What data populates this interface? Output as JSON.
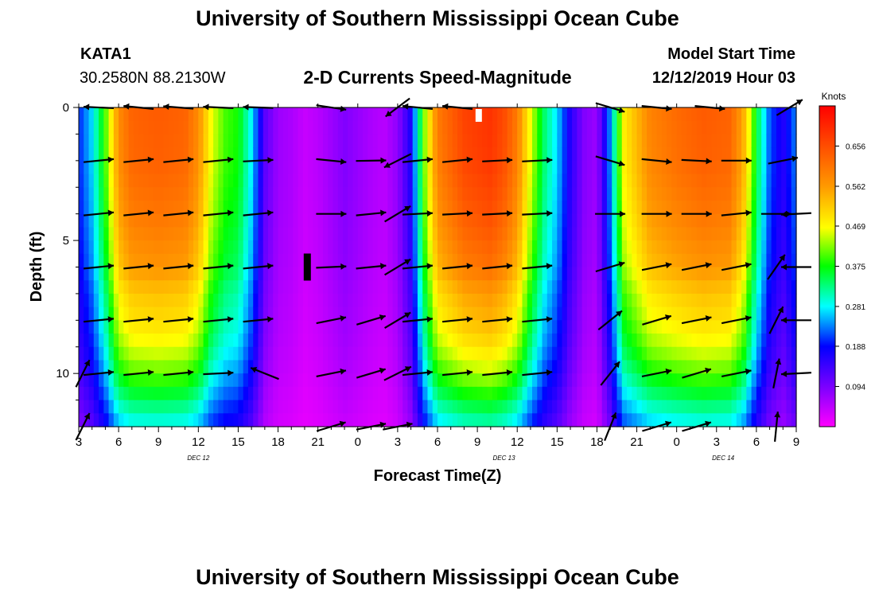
{
  "page": {
    "title_top": "University of Southern Mississippi Ocean Cube",
    "title_bottom": "University of Southern Mississippi Ocean Cube",
    "station_id": "KATA1",
    "coords": "30.2580N 88.2130W",
    "chart_title": "2-D Currents Speed-Magnitude",
    "model_start_label": "Model Start Time",
    "model_start_value": "12/12/2019 Hour 03"
  },
  "chart_data": {
    "type": "heatmap",
    "title": "2-D Currents Speed-Magnitude",
    "xlabel": "Forecast Time(Z)",
    "ylabel": "Depth (ft)",
    "xlim": [
      3,
      57
    ],
    "ylim": [
      0,
      12
    ],
    "x_ticks": [
      {
        "t": 3,
        "label": "3"
      },
      {
        "t": 6,
        "label": "6"
      },
      {
        "t": 9,
        "label": "9"
      },
      {
        "t": 12,
        "label": "12"
      },
      {
        "t": 15,
        "label": "15"
      },
      {
        "t": 18,
        "label": "18"
      },
      {
        "t": 21,
        "label": "21"
      },
      {
        "t": 24,
        "label": "0"
      },
      {
        "t": 27,
        "label": "3"
      },
      {
        "t": 30,
        "label": "6"
      },
      {
        "t": 33,
        "label": "9"
      },
      {
        "t": 36,
        "label": "12"
      },
      {
        "t": 39,
        "label": "15"
      },
      {
        "t": 42,
        "label": "18"
      },
      {
        "t": 45,
        "label": "21"
      },
      {
        "t": 48,
        "label": "0"
      },
      {
        "t": 51,
        "label": "3"
      },
      {
        "t": 54,
        "label": "6"
      },
      {
        "t": 57,
        "label": "9"
      }
    ],
    "date_labels": [
      {
        "t": 12,
        "label": "DEC 12"
      },
      {
        "t": 35,
        "label": "DEC 13"
      },
      {
        "t": 51.5,
        "label": "DEC 14"
      }
    ],
    "y_ticks": [
      {
        "d": 0,
        "label": "0"
      },
      {
        "d": 5,
        "label": "5"
      },
      {
        "d": 10,
        "label": "10"
      }
    ],
    "colorbar": {
      "unit_label": "Knots",
      "min": 0.0,
      "max": 0.75,
      "ticks": [
        "0.094",
        "0.188",
        "0.281",
        "0.375",
        "0.469",
        "0.562",
        "0.656"
      ]
    },
    "speed_model": {
      "units": "knots",
      "description": "speed by forecast hour (t) and depth (d)",
      "surface_profile": [
        [
          3,
          0.2
        ],
        [
          4,
          0.27
        ],
        [
          5,
          0.4
        ],
        [
          6,
          0.58
        ],
        [
          7,
          0.63
        ],
        [
          9,
          0.64
        ],
        [
          11,
          0.63
        ],
        [
          12,
          0.58
        ],
        [
          13,
          0.46
        ],
        [
          14,
          0.4
        ],
        [
          15,
          0.38
        ],
        [
          16,
          0.28
        ],
        [
          17,
          0.12
        ],
        [
          18,
          0.07
        ],
        [
          19,
          0.06
        ],
        [
          20,
          0.04
        ],
        [
          21,
          0.05
        ],
        [
          23,
          0.09
        ],
        [
          25,
          0.06
        ],
        [
          26,
          0.05
        ],
        [
          27,
          0.08
        ],
        [
          28,
          0.17
        ],
        [
          29,
          0.42
        ],
        [
          30,
          0.6
        ],
        [
          32,
          0.67
        ],
        [
          34,
          0.69
        ],
        [
          35,
          0.66
        ],
        [
          36,
          0.6
        ],
        [
          37,
          0.46
        ],
        [
          38,
          0.34
        ],
        [
          39,
          0.27
        ],
        [
          40,
          0.16
        ],
        [
          41,
          0.09
        ],
        [
          42,
          0.07
        ],
        [
          43,
          0.24
        ],
        [
          44,
          0.48
        ],
        [
          46,
          0.59
        ],
        [
          48,
          0.62
        ],
        [
          50,
          0.64
        ],
        [
          52,
          0.63
        ],
        [
          53,
          0.55
        ],
        [
          54,
          0.36
        ],
        [
          55,
          0.22
        ],
        [
          56,
          0.16
        ],
        [
          57,
          0.24
        ]
      ],
      "depth_factor": [
        [
          0,
          1.0
        ],
        [
          2,
          0.99
        ],
        [
          4,
          0.95
        ],
        [
          6,
          0.89
        ],
        [
          7,
          0.82
        ],
        [
          8,
          0.78
        ],
        [
          9,
          0.72
        ],
        [
          10,
          0.64
        ],
        [
          11,
          0.54
        ],
        [
          12,
          0.44
        ]
      ]
    },
    "vectors": {
      "description": "current direction arrows: t (forecast hour), d (depth ft), dx/dy relative direction (dy positive = up)",
      "items": [
        {
          "t": 4.5,
          "d": 0,
          "dx": -1,
          "dy": 0.05
        },
        {
          "t": 7.5,
          "d": 0,
          "dx": -1,
          "dy": 0.1
        },
        {
          "t": 10.5,
          "d": 0,
          "dx": -1,
          "dy": 0.08
        },
        {
          "t": 13.5,
          "d": 0,
          "dx": -1,
          "dy": 0.05
        },
        {
          "t": 16.5,
          "d": 0,
          "dx": -1,
          "dy": 0.03
        },
        {
          "t": 22,
          "d": 0,
          "dx": 1,
          "dy": -0.15
        },
        {
          "t": 27,
          "d": 0,
          "dx": -0.8,
          "dy": -0.6
        },
        {
          "t": 28.5,
          "d": 0,
          "dx": -1,
          "dy": 0.1
        },
        {
          "t": 31.5,
          "d": 0,
          "dx": -1,
          "dy": 0.1
        },
        {
          "t": 43,
          "d": 0,
          "dx": 1,
          "dy": -0.3
        },
        {
          "t": 46.5,
          "d": 0,
          "dx": 1,
          "dy": -0.1
        },
        {
          "t": 50.5,
          "d": 0,
          "dx": 1,
          "dy": -0.1
        },
        {
          "t": 56.5,
          "d": 0,
          "dx": 1,
          "dy": 0.6
        },
        {
          "t": 4.5,
          "d": 2,
          "dx": 1,
          "dy": 0.1
        },
        {
          "t": 7.5,
          "d": 2,
          "dx": 1,
          "dy": 0.1
        },
        {
          "t": 10.5,
          "d": 2,
          "dx": 1,
          "dy": 0.1
        },
        {
          "t": 13.5,
          "d": 2,
          "dx": 1,
          "dy": 0.1
        },
        {
          "t": 16.5,
          "d": 2,
          "dx": 1,
          "dy": 0.05
        },
        {
          "t": 22,
          "d": 2,
          "dx": 1,
          "dy": -0.1
        },
        {
          "t": 25,
          "d": 2,
          "dx": 1,
          "dy": 0.02
        },
        {
          "t": 27,
          "d": 2,
          "dx": -1,
          "dy": -0.5
        },
        {
          "t": 28.5,
          "d": 2,
          "dx": 1,
          "dy": 0.1
        },
        {
          "t": 31.5,
          "d": 2,
          "dx": 1,
          "dy": 0.1
        },
        {
          "t": 34.5,
          "d": 2,
          "dx": 1,
          "dy": 0.05
        },
        {
          "t": 37.5,
          "d": 2,
          "dx": 1,
          "dy": 0.05
        },
        {
          "t": 43,
          "d": 2,
          "dx": 1,
          "dy": -0.3
        },
        {
          "t": 46.5,
          "d": 2,
          "dx": 1,
          "dy": -0.1
        },
        {
          "t": 49.5,
          "d": 2,
          "dx": 1,
          "dy": -0.05
        },
        {
          "t": 52.5,
          "d": 2,
          "dx": 1,
          "dy": 0
        },
        {
          "t": 56,
          "d": 2,
          "dx": 1,
          "dy": 0.2
        },
        {
          "t": 4.5,
          "d": 4,
          "dx": 1,
          "dy": 0.1
        },
        {
          "t": 7.5,
          "d": 4,
          "dx": 1,
          "dy": 0.1
        },
        {
          "t": 10.5,
          "d": 4,
          "dx": 1,
          "dy": 0.1
        },
        {
          "t": 13.5,
          "d": 4,
          "dx": 1,
          "dy": 0.1
        },
        {
          "t": 16.5,
          "d": 4,
          "dx": 1,
          "dy": 0.1
        },
        {
          "t": 22,
          "d": 4,
          "dx": 1,
          "dy": 0
        },
        {
          "t": 25,
          "d": 4,
          "dx": 1,
          "dy": 0.1
        },
        {
          "t": 27,
          "d": 4,
          "dx": 1,
          "dy": 0.6
        },
        {
          "t": 28.5,
          "d": 4,
          "dx": 1,
          "dy": 0.05
        },
        {
          "t": 31.5,
          "d": 4,
          "dx": 1,
          "dy": 0.05
        },
        {
          "t": 34.5,
          "d": 4,
          "dx": 1,
          "dy": 0.05
        },
        {
          "t": 37.5,
          "d": 4,
          "dx": 1,
          "dy": 0.05
        },
        {
          "t": 43,
          "d": 4,
          "dx": 1,
          "dy": 0
        },
        {
          "t": 46.5,
          "d": 4,
          "dx": 1,
          "dy": 0
        },
        {
          "t": 49.5,
          "d": 4,
          "dx": 1,
          "dy": 0
        },
        {
          "t": 52.5,
          "d": 4,
          "dx": 1,
          "dy": 0.1
        },
        {
          "t": 55.5,
          "d": 4,
          "dx": 1,
          "dy": 0
        },
        {
          "t": 57,
          "d": 4,
          "dx": -1,
          "dy": -0.05
        },
        {
          "t": 4.5,
          "d": 6,
          "dx": 1,
          "dy": 0.1
        },
        {
          "t": 7.5,
          "d": 6,
          "dx": 1,
          "dy": 0.1
        },
        {
          "t": 10.5,
          "d": 6,
          "dx": 1,
          "dy": 0.1
        },
        {
          "t": 13.5,
          "d": 6,
          "dx": 1,
          "dy": 0.1
        },
        {
          "t": 16.5,
          "d": 6,
          "dx": 1,
          "dy": 0.1
        },
        {
          "t": 22,
          "d": 6,
          "dx": 1,
          "dy": 0.05
        },
        {
          "t": 25,
          "d": 6,
          "dx": 1,
          "dy": 0.1
        },
        {
          "t": 27,
          "d": 6,
          "dx": 1,
          "dy": 0.6
        },
        {
          "t": 28.5,
          "d": 6,
          "dx": 1,
          "dy": 0.1
        },
        {
          "t": 31.5,
          "d": 6,
          "dx": 1,
          "dy": 0.1
        },
        {
          "t": 34.5,
          "d": 6,
          "dx": 1,
          "dy": 0.1
        },
        {
          "t": 37.5,
          "d": 6,
          "dx": 1,
          "dy": 0.1
        },
        {
          "t": 43,
          "d": 6,
          "dx": 1,
          "dy": 0.3
        },
        {
          "t": 46.5,
          "d": 6,
          "dx": 1,
          "dy": 0.2
        },
        {
          "t": 49.5,
          "d": 6,
          "dx": 1,
          "dy": 0.2
        },
        {
          "t": 52.5,
          "d": 6,
          "dx": 1,
          "dy": 0.2
        },
        {
          "t": 55.5,
          "d": 6,
          "dx": 0.7,
          "dy": 1
        },
        {
          "t": 57,
          "d": 6,
          "dx": -1,
          "dy": 0
        },
        {
          "t": 4.5,
          "d": 8,
          "dx": 1,
          "dy": 0.1
        },
        {
          "t": 7.5,
          "d": 8,
          "dx": 1,
          "dy": 0.1
        },
        {
          "t": 10.5,
          "d": 8,
          "dx": 1,
          "dy": 0.1
        },
        {
          "t": 13.5,
          "d": 8,
          "dx": 1,
          "dy": 0.1
        },
        {
          "t": 16.5,
          "d": 8,
          "dx": 1,
          "dy": 0.1
        },
        {
          "t": 22,
          "d": 8,
          "dx": 1,
          "dy": 0.2
        },
        {
          "t": 25,
          "d": 8,
          "dx": 1,
          "dy": 0.3
        },
        {
          "t": 27,
          "d": 8,
          "dx": 1,
          "dy": 0.6
        },
        {
          "t": 28.5,
          "d": 8,
          "dx": 1,
          "dy": 0.1
        },
        {
          "t": 31.5,
          "d": 8,
          "dx": 1,
          "dy": 0.1
        },
        {
          "t": 34.5,
          "d": 8,
          "dx": 1,
          "dy": 0.1
        },
        {
          "t": 37.5,
          "d": 8,
          "dx": 1,
          "dy": 0.1
        },
        {
          "t": 43,
          "d": 8,
          "dx": 1,
          "dy": 0.8
        },
        {
          "t": 46.5,
          "d": 8,
          "dx": 1,
          "dy": 0.3
        },
        {
          "t": 49.5,
          "d": 8,
          "dx": 1,
          "dy": 0.2
        },
        {
          "t": 52.5,
          "d": 8,
          "dx": 1,
          "dy": 0.2
        },
        {
          "t": 55.5,
          "d": 8,
          "dx": 0.5,
          "dy": 1
        },
        {
          "t": 57,
          "d": 8,
          "dx": -1,
          "dy": 0
        },
        {
          "t": 3.3,
          "d": 10,
          "dx": 0.5,
          "dy": 1
        },
        {
          "t": 4.5,
          "d": 10,
          "dx": 1,
          "dy": 0.1
        },
        {
          "t": 7.5,
          "d": 10,
          "dx": 1,
          "dy": 0.1
        },
        {
          "t": 10.5,
          "d": 10,
          "dx": 1,
          "dy": 0.1
        },
        {
          "t": 13.5,
          "d": 10,
          "dx": 1,
          "dy": 0.05
        },
        {
          "t": 17,
          "d": 10,
          "dx": -1,
          "dy": 0.4
        },
        {
          "t": 22,
          "d": 10,
          "dx": 1,
          "dy": 0.2
        },
        {
          "t": 25,
          "d": 10,
          "dx": 1,
          "dy": 0.3
        },
        {
          "t": 27,
          "d": 10,
          "dx": 1,
          "dy": 0.5
        },
        {
          "t": 28.5,
          "d": 10,
          "dx": 1,
          "dy": 0.1
        },
        {
          "t": 31.5,
          "d": 10,
          "dx": 1,
          "dy": 0.1
        },
        {
          "t": 34.5,
          "d": 10,
          "dx": 1,
          "dy": 0.1
        },
        {
          "t": 37.5,
          "d": 10,
          "dx": 1,
          "dy": 0.1
        },
        {
          "t": 43,
          "d": 10,
          "dx": 0.8,
          "dy": 1
        },
        {
          "t": 46.5,
          "d": 10,
          "dx": 1,
          "dy": 0.2
        },
        {
          "t": 49.5,
          "d": 10,
          "dx": 1,
          "dy": 0.3
        },
        {
          "t": 52.5,
          "d": 10,
          "dx": 1,
          "dy": 0.2
        },
        {
          "t": 55.5,
          "d": 10,
          "dx": 0.2,
          "dy": 1
        },
        {
          "t": 57,
          "d": 10,
          "dx": -1,
          "dy": -0.05
        },
        {
          "t": 3.3,
          "d": 12,
          "dx": 0.5,
          "dy": 1
        },
        {
          "t": 22,
          "d": 12,
          "dx": 1,
          "dy": 0.3
        },
        {
          "t": 25,
          "d": 12,
          "dx": 1,
          "dy": 0.2
        },
        {
          "t": 27,
          "d": 12,
          "dx": 1,
          "dy": 0.2
        },
        {
          "t": 43,
          "d": 12,
          "dx": 0.4,
          "dy": 1
        },
        {
          "t": 46.5,
          "d": 12,
          "dx": 1,
          "dy": 0.3
        },
        {
          "t": 49.5,
          "d": 12,
          "dx": 1,
          "dy": 0.3
        },
        {
          "t": 55.5,
          "d": 12,
          "dx": 0.1,
          "dy": 1
        }
      ]
    },
    "markers": [
      {
        "t": 20.2,
        "d": 6,
        "color": "#000000",
        "description": "black bar marker"
      },
      {
        "t": 33.1,
        "d": 0.3,
        "color": "#ffffff",
        "description": "white bar marker"
      }
    ]
  }
}
